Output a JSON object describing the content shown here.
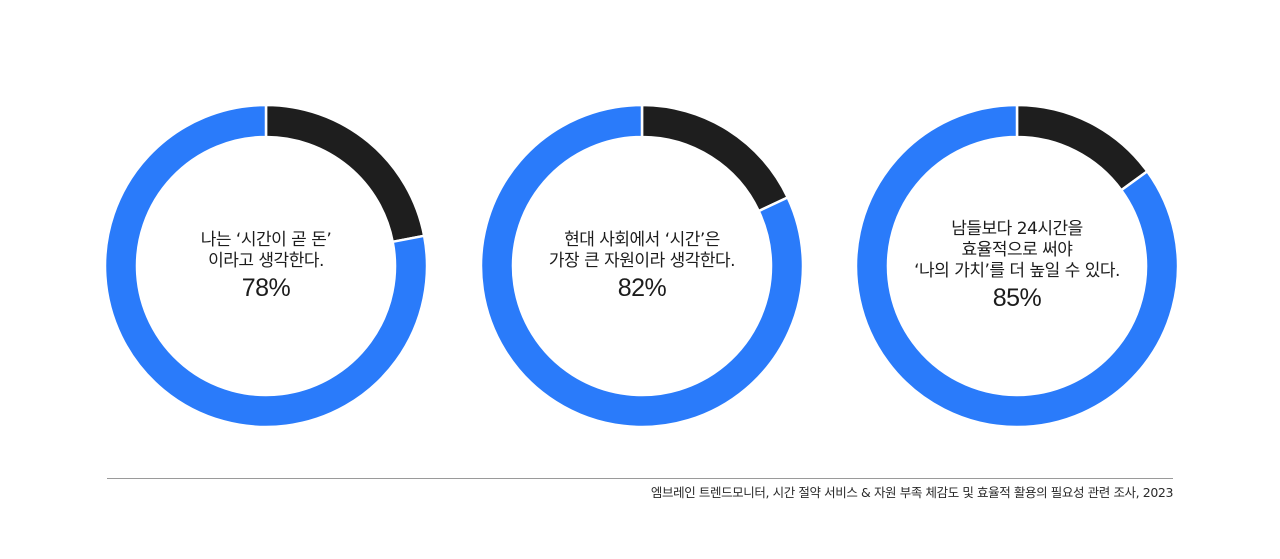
{
  "colors": {
    "accent": "#2a7bfa",
    "remainder": "#1e1e1e",
    "separator": "#ffffff"
  },
  "chart_data": [
    {
      "type": "pie",
      "variant": "donut",
      "caption_lines": [
        "나는 ‘시간이 곧 돈’",
        "이라고 생각한다."
      ],
      "value_label": "78%",
      "slices": [
        {
          "value": 78,
          "color": "#2a7bfa"
        },
        {
          "value": 22,
          "color": "#1e1e1e"
        }
      ]
    },
    {
      "type": "pie",
      "variant": "donut",
      "caption_lines": [
        "현대 사회에서 ‘시간’은",
        "가장 큰 자원이라 생각한다."
      ],
      "value_label": "82%",
      "slices": [
        {
          "value": 82,
          "color": "#2a7bfa"
        },
        {
          "value": 18,
          "color": "#1e1e1e"
        }
      ]
    },
    {
      "type": "pie",
      "variant": "donut",
      "caption_lines": [
        "남들보다 24시간을",
        "효율적으로 써야",
        "‘나의 가치’를 더 높일 수 있다."
      ],
      "value_label": "85%",
      "slices": [
        {
          "value": 85,
          "color": "#2a7bfa"
        },
        {
          "value": 15,
          "color": "#1e1e1e"
        }
      ]
    }
  ],
  "source": "엠브레인 트렌드모니터, 시간 절약 서비스 & 자원 부족 체감도 및 효율적 활용의 필요성 관련 조사, 2023"
}
